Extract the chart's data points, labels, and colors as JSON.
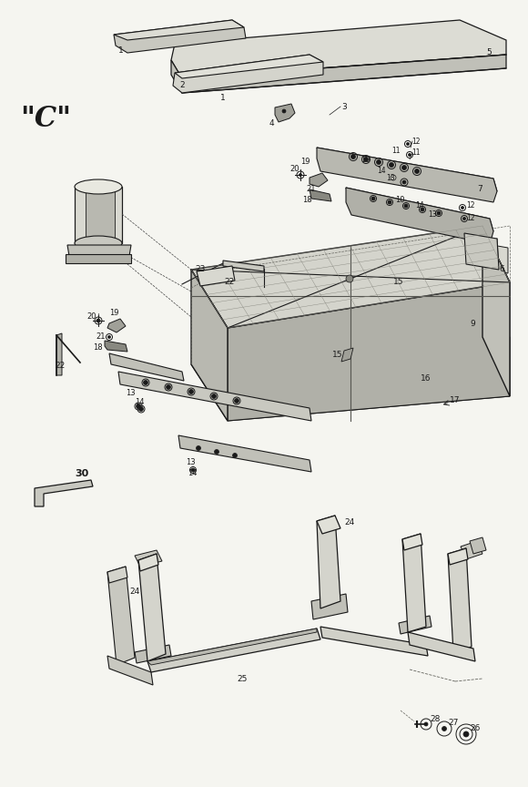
{
  "bg": "#f5f5f0",
  "lc": "#1a1a1a",
  "fc_light": "#e8e8e0",
  "fc_mid": "#d0d0c8",
  "fc_dark": "#b0b0a8",
  "fc_slate": "#c8c8c0",
  "fc_white": "#f0f0ec"
}
